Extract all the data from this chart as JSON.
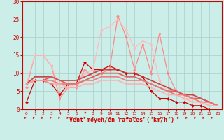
{
  "background_color": "#cceee8",
  "grid_color": "#aacccc",
  "xlabel": "Vent moyen/en rafales ( km/h )",
  "xlim": [
    -0.5,
    23.5
  ],
  "ylim": [
    0,
    30
  ],
  "yticks": [
    0,
    5,
    10,
    15,
    20,
    25,
    30
  ],
  "xticks": [
    0,
    1,
    2,
    3,
    4,
    5,
    6,
    7,
    8,
    9,
    10,
    11,
    12,
    13,
    14,
    15,
    16,
    17,
    18,
    19,
    20,
    21,
    22,
    23
  ],
  "series": [
    {
      "x": [
        0,
        1,
        2,
        3,
        4,
        5,
        6,
        7,
        8,
        9,
        10,
        11,
        12,
        13,
        14,
        15,
        16,
        17,
        18,
        19,
        20,
        21,
        22
      ],
      "y": [
        2,
        8,
        8,
        7,
        4,
        7,
        7,
        13,
        11,
        11,
        12,
        11,
        10,
        10,
        9,
        5,
        3,
        3,
        2,
        2,
        1,
        1,
        0
      ],
      "color": "#cc0000",
      "lw": 0.9,
      "marker": "D",
      "ms": 2.0,
      "alpha": 1.0,
      "linestyle": "-"
    },
    {
      "x": [
        0,
        1,
        2,
        3,
        4,
        5,
        6,
        7,
        8,
        9,
        10,
        11,
        12,
        13,
        14,
        15,
        16,
        17,
        18,
        19,
        20,
        21,
        22
      ],
      "y": [
        6,
        15,
        15,
        12,
        3,
        6,
        6,
        11,
        9,
        10,
        11,
        26,
        20,
        11,
        18,
        10,
        21,
        10,
        5,
        4,
        3,
        2,
        2
      ],
      "color": "#ff8888",
      "lw": 0.9,
      "marker": "D",
      "ms": 2.0,
      "alpha": 1.0,
      "linestyle": "-"
    },
    {
      "x": [
        0,
        1,
        2,
        3,
        4,
        5,
        6,
        7,
        8,
        9,
        10,
        11,
        12,
        13,
        14,
        15,
        16,
        17,
        18,
        19,
        20,
        21,
        22
      ],
      "y": [
        7,
        15,
        15,
        12,
        6,
        6,
        7,
        10,
        11,
        22,
        23,
        25,
        22,
        17,
        19,
        18,
        8,
        5,
        4,
        3,
        3,
        2,
        2
      ],
      "color": "#ffbbbb",
      "lw": 0.9,
      "marker": "D",
      "ms": 2.0,
      "alpha": 1.0,
      "linestyle": "-"
    },
    {
      "x": [
        0,
        1,
        2,
        3,
        4,
        5,
        6,
        7,
        8,
        9,
        10,
        11,
        12,
        13,
        14,
        15,
        16,
        17,
        18,
        19,
        20,
        21,
        22,
        23
      ],
      "y": [
        7,
        9,
        9,
        9,
        8,
        8,
        8,
        9,
        10,
        11,
        11,
        11,
        10,
        10,
        9,
        8,
        7,
        6,
        5,
        4,
        4,
        3,
        2,
        1
      ],
      "color": "#cc3333",
      "lw": 1.3,
      "marker": null,
      "ms": 0,
      "alpha": 0.9,
      "linestyle": "-"
    },
    {
      "x": [
        0,
        1,
        2,
        3,
        4,
        5,
        6,
        7,
        8,
        9,
        10,
        11,
        12,
        13,
        14,
        15,
        16,
        17,
        18,
        19,
        20,
        21,
        22,
        23
      ],
      "y": [
        7,
        8,
        8,
        9,
        8,
        7,
        7,
        8,
        9,
        10,
        10,
        10,
        9,
        9,
        8,
        7,
        6,
        5,
        5,
        4,
        3,
        3,
        2,
        1
      ],
      "color": "#dd5555",
      "lw": 1.3,
      "marker": null,
      "ms": 0,
      "alpha": 0.9,
      "linestyle": "-"
    },
    {
      "x": [
        0,
        1,
        2,
        3,
        4,
        5,
        6,
        7,
        8,
        9,
        10,
        11,
        12,
        13,
        14,
        15,
        16,
        17,
        18,
        19,
        20,
        21,
        22,
        23
      ],
      "y": [
        7,
        8,
        8,
        8,
        7,
        7,
        7,
        8,
        8,
        9,
        9,
        9,
        8,
        8,
        8,
        7,
        6,
        5,
        4,
        4,
        3,
        2,
        2,
        1
      ],
      "color": "#ee7777",
      "lw": 1.3,
      "marker": null,
      "ms": 0,
      "alpha": 0.9,
      "linestyle": "-"
    },
    {
      "x": [
        0,
        1,
        2,
        3,
        4,
        5,
        6,
        7,
        8,
        9,
        10,
        11,
        12,
        13,
        14,
        15,
        16,
        17,
        18,
        19,
        20,
        21,
        22,
        23
      ],
      "y": [
        7,
        8,
        8,
        7,
        7,
        6,
        6,
        7,
        7,
        8,
        8,
        8,
        7,
        7,
        7,
        6,
        5,
        4,
        4,
        3,
        2,
        2,
        1,
        1
      ],
      "color": "#ffaaaa",
      "lw": 1.3,
      "marker": null,
      "ms": 0,
      "alpha": 0.8,
      "linestyle": "-"
    }
  ]
}
